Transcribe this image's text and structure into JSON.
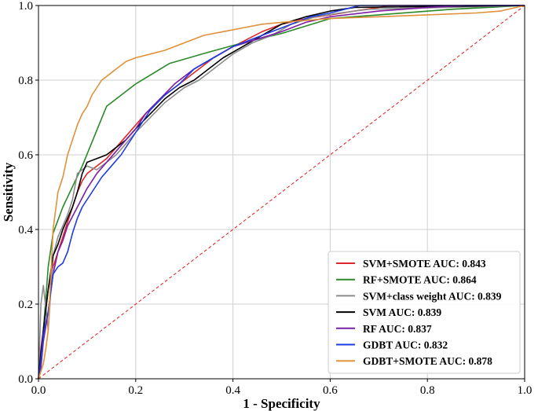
{
  "chart_data": {
    "type": "line",
    "title": "",
    "xlabel": "1 - Specificity",
    "ylabel": "Sensitivity",
    "xlim": [
      0.0,
      1.0
    ],
    "ylim": [
      0.0,
      1.0
    ],
    "xticks": [
      "0.0",
      "0.2",
      "0.4",
      "0.6",
      "0.8",
      "1.0"
    ],
    "yticks": [
      "0.0",
      "0.2",
      "0.4",
      "0.6",
      "0.8",
      "1.0"
    ],
    "grid": true,
    "legend_position": "bottom-right",
    "reference_line": {
      "x": [
        0,
        1
      ],
      "y": [
        0,
        1
      ],
      "color": "#e41a1c",
      "style": "dashed"
    },
    "series": [
      {
        "name": "SVM+SMOTE AUC: 0.843",
        "color": "#e0262a",
        "x": [
          0,
          0.005,
          0.01,
          0.02,
          0.03,
          0.04,
          0.05,
          0.06,
          0.07,
          0.08,
          0.09,
          0.1,
          0.12,
          0.14,
          0.16,
          0.18,
          0.2,
          0.22,
          0.25,
          0.28,
          0.3,
          0.33,
          0.36,
          0.4,
          0.43,
          0.46,
          0.5,
          0.55,
          0.6,
          0.65,
          0.7,
          0.72,
          1.0
        ],
        "y": [
          0,
          0.08,
          0.13,
          0.24,
          0.3,
          0.34,
          0.38,
          0.42,
          0.46,
          0.5,
          0.53,
          0.55,
          0.57,
          0.59,
          0.62,
          0.65,
          0.68,
          0.71,
          0.75,
          0.78,
          0.8,
          0.83,
          0.86,
          0.89,
          0.91,
          0.93,
          0.95,
          0.965,
          0.975,
          0.985,
          0.995,
          1.0,
          1.0
        ]
      },
      {
        "name": "RF+SMOTE AUC: 0.864",
        "color": "#2a8a2a",
        "x": [
          0,
          0.005,
          0.01,
          0.02,
          0.03,
          0.05,
          0.09,
          0.14,
          0.2,
          0.27,
          0.35,
          0.42,
          0.5,
          0.6,
          0.7,
          0.85,
          1.0
        ],
        "y": [
          0,
          0.05,
          0.13,
          0.3,
          0.39,
          0.46,
          0.57,
          0.73,
          0.79,
          0.845,
          0.875,
          0.9,
          0.925,
          0.965,
          0.975,
          0.99,
          1.0
        ]
      },
      {
        "name": "SVM+class weight AUC: 0.839",
        "color": "#8c8c8c",
        "x": [
          0,
          0.005,
          0.01,
          0.02,
          0.03,
          0.04,
          0.05,
          0.06,
          0.07,
          0.08,
          0.1,
          0.12,
          0.14,
          0.16,
          0.18,
          0.2,
          0.23,
          0.26,
          0.3,
          0.33,
          0.37,
          0.4,
          0.44,
          0.48,
          0.52,
          0.57,
          0.62,
          0.68,
          1.0
        ],
        "y": [
          0,
          0.2,
          0.25,
          0.13,
          0.33,
          0.38,
          0.41,
          0.44,
          0.48,
          0.55,
          0.57,
          0.56,
          0.58,
          0.6,
          0.63,
          0.66,
          0.7,
          0.74,
          0.78,
          0.8,
          0.84,
          0.87,
          0.9,
          0.92,
          0.95,
          0.97,
          0.98,
          0.99,
          1.0
        ]
      },
      {
        "name": "SVM AUC: 0.839",
        "color": "#000000",
        "x": [
          0,
          0.005,
          0.01,
          0.02,
          0.03,
          0.04,
          0.05,
          0.06,
          0.07,
          0.08,
          0.09,
          0.1,
          0.12,
          0.14,
          0.16,
          0.18,
          0.2,
          0.23,
          0.26,
          0.29,
          0.32,
          0.35,
          0.38,
          0.42,
          0.46,
          0.5,
          0.55,
          0.6,
          0.65,
          1.0
        ],
        "y": [
          0,
          0.07,
          0.13,
          0.24,
          0.33,
          0.36,
          0.4,
          0.43,
          0.46,
          0.5,
          0.55,
          0.58,
          0.59,
          0.6,
          0.62,
          0.64,
          0.67,
          0.71,
          0.75,
          0.78,
          0.8,
          0.83,
          0.86,
          0.89,
          0.92,
          0.95,
          0.97,
          0.985,
          0.995,
          1.0
        ]
      },
      {
        "name": "RF AUC: 0.837",
        "color": "#7b1fa2",
        "x": [
          0,
          0.005,
          0.01,
          0.02,
          0.03,
          0.04,
          0.05,
          0.06,
          0.08,
          0.1,
          0.12,
          0.14,
          0.16,
          0.18,
          0.2,
          0.22,
          0.25,
          0.28,
          0.32,
          0.36,
          0.4,
          0.45,
          0.5,
          0.55,
          0.6,
          0.7,
          0.8,
          0.88,
          1.0
        ],
        "y": [
          0,
          0.03,
          0.1,
          0.18,
          0.28,
          0.34,
          0.37,
          0.41,
          0.46,
          0.51,
          0.55,
          0.58,
          0.61,
          0.64,
          0.67,
          0.71,
          0.75,
          0.79,
          0.83,
          0.86,
          0.89,
          0.91,
          0.93,
          0.955,
          0.97,
          0.985,
          0.995,
          1.0,
          1.0
        ]
      },
      {
        "name": "GDBT AUC: 0.832",
        "color": "#1f3be0",
        "x": [
          0,
          0.005,
          0.01,
          0.02,
          0.03,
          0.04,
          0.05,
          0.06,
          0.07,
          0.08,
          0.09,
          0.1,
          0.11,
          0.12,
          0.13,
          0.15,
          0.17,
          0.19,
          0.21,
          0.23,
          0.26,
          0.29,
          0.32,
          0.36,
          0.4,
          0.44,
          0.48,
          0.52,
          0.56,
          0.6,
          0.63,
          0.66,
          1.0
        ],
        "y": [
          0,
          0.05,
          0.12,
          0.18,
          0.28,
          0.3,
          0.31,
          0.34,
          0.39,
          0.43,
          0.46,
          0.48,
          0.5,
          0.52,
          0.54,
          0.57,
          0.6,
          0.64,
          0.68,
          0.72,
          0.76,
          0.79,
          0.83,
          0.86,
          0.89,
          0.91,
          0.93,
          0.95,
          0.97,
          0.98,
          0.99,
          1.0,
          1.0
        ]
      },
      {
        "name": "GDBT+SMOTE AUC: 0.878",
        "color": "#e0913a",
        "x": [
          0,
          0.005,
          0.01,
          0.015,
          0.02,
          0.03,
          0.04,
          0.05,
          0.06,
          0.07,
          0.08,
          0.09,
          0.1,
          0.11,
          0.12,
          0.13,
          0.14,
          0.16,
          0.18,
          0.2,
          0.23,
          0.26,
          0.3,
          0.34,
          0.38,
          0.42,
          0.46,
          0.5,
          0.55,
          0.6,
          0.7,
          0.8,
          0.9,
          0.95,
          1.0
        ],
        "y": [
          0,
          0.02,
          0.04,
          0.08,
          0.13,
          0.4,
          0.5,
          0.54,
          0.6,
          0.64,
          0.68,
          0.71,
          0.73,
          0.76,
          0.78,
          0.8,
          0.81,
          0.83,
          0.85,
          0.86,
          0.87,
          0.88,
          0.9,
          0.92,
          0.93,
          0.94,
          0.95,
          0.955,
          0.96,
          0.965,
          0.97,
          0.975,
          0.98,
          0.985,
          1.0
        ]
      }
    ]
  }
}
